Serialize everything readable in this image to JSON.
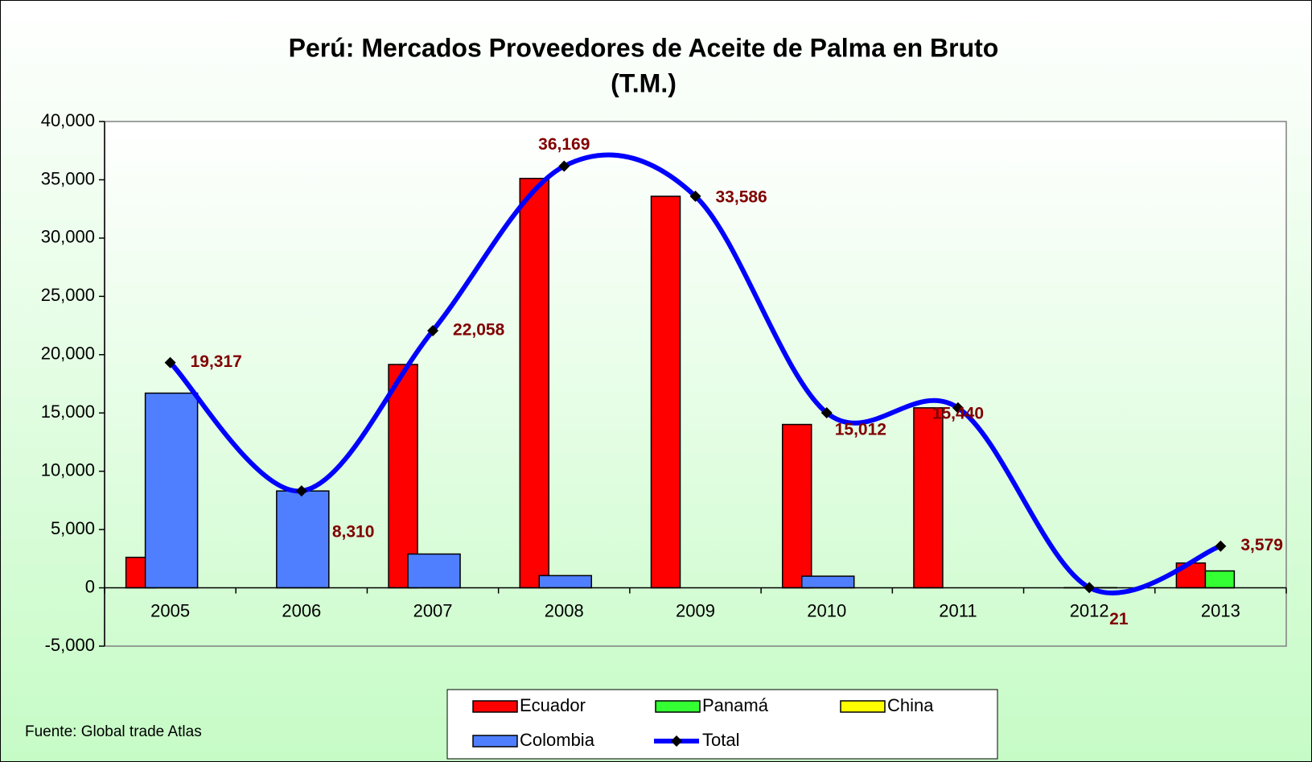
{
  "chart_data": {
    "type": "bar",
    "title": "Perú: Mercados Proveedores de Aceite de Palma en Bruto",
    "subtitle": "(T.M.)",
    "categories": [
      "2005",
      "2006",
      "2007",
      "2008",
      "2009",
      "2010",
      "2011",
      "2012",
      "2013"
    ],
    "series": [
      {
        "name": "Ecuador",
        "color": "#ff0000",
        "values": [
          2617,
          0,
          19158,
          35119,
          33586,
          14012,
          15440,
          0,
          2129
        ]
      },
      {
        "name": "Panamá",
        "color": "#33ff33",
        "values": [
          0,
          0,
          0,
          0,
          0,
          0,
          0,
          0,
          1450
        ]
      },
      {
        "name": "China",
        "color": "#ffff00",
        "values": [
          0,
          0,
          0,
          0,
          0,
          0,
          0,
          0,
          0
        ]
      },
      {
        "name": "Colombia",
        "color": "#4f7fff",
        "values": [
          16700,
          8310,
          2900,
          1050,
          0,
          1000,
          0,
          21,
          0
        ]
      },
      {
        "name": "Total",
        "color": "#0000ff",
        "type": "line",
        "smooth": true,
        "values": [
          19317,
          8310,
          22058,
          36169,
          33586,
          15012,
          15440,
          21,
          3579
        ],
        "value_labels": [
          "19,317",
          "8,310",
          "22,058",
          "36,169",
          "33,586",
          "15,012",
          "15,440",
          "21",
          "3,579"
        ]
      }
    ],
    "ylim": [
      -5000,
      40000
    ],
    "yticks": [
      {
        "value": -5000,
        "label": "-5,000"
      },
      0,
      {
        "value": 5000,
        "label": "5,000"
      },
      {
        "value": 10000,
        "label": "10,000"
      },
      {
        "value": 15000,
        "label": "15,000"
      },
      {
        "value": 20000,
        "label": "20,000"
      },
      {
        "value": 25000,
        "label": "25,000"
      },
      {
        "value": 30000,
        "label": "30,000"
      },
      {
        "value": 35000,
        "label": "35,000"
      },
      {
        "value": 40000,
        "label": "40,000"
      }
    ],
    "grid": false,
    "legend": "bottom",
    "source": "Fuente: Global trade Atlas"
  }
}
